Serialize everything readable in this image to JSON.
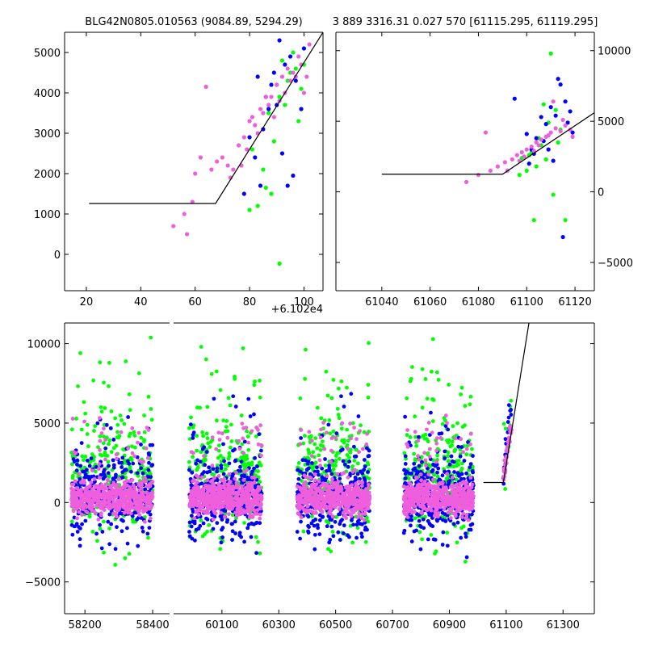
{
  "title_left": "BLG42N0805.010563 (9084.89, 5294.29)",
  "title_right": "3 889 3316.31 0.027 570 [61115.295, 61119.295]",
  "x_offset_label": "+6.102e4",
  "colors": {
    "green": "#00ff00",
    "blue": "#0000ff",
    "magenta": "#ee5edd",
    "model": "#000000"
  },
  "chart_data": [
    {
      "id": "zoom-left",
      "type": "scatter",
      "title": "BLG42N0805.010563 (9084.89, 5294.29)",
      "xlim": [
        12,
        107
      ],
      "ylim": [
        -900,
        5500
      ],
      "xticks": [
        20,
        40,
        60,
        80,
        100
      ],
      "yticks": [
        0,
        1000,
        2000,
        3000,
        4000,
        5000
      ],
      "x_offset": "+6.102e4",
      "grid": false,
      "model_line": [
        [
          21,
          1260
        ],
        [
          67.5,
          1260
        ],
        [
          107,
          5500
        ]
      ],
      "series": [
        {
          "color": "green",
          "points": [
            [
              87,
              3500
            ],
            [
              90,
              4200
            ],
            [
              92,
              4800
            ],
            [
              95,
              4500
            ],
            [
              98,
              3300
            ],
            [
              100,
              4700
            ],
            [
              85,
              2100
            ],
            [
              88,
              1500
            ],
            [
              91,
              3900
            ],
            [
              94,
              4300
            ],
            [
              96,
              5000
            ],
            [
              83,
              1200
            ],
            [
              81,
              2600
            ],
            [
              99,
              4100
            ],
            [
              91,
              -230
            ],
            [
              86,
              1650
            ],
            [
              93,
              3700
            ],
            [
              89,
              2800
            ],
            [
              80,
              1100
            ],
            [
              97,
              4600
            ]
          ]
        },
        {
          "color": "blue",
          "points": [
            [
              82,
              2400
            ],
            [
              86,
              3900
            ],
            [
              88,
              4200
            ],
            [
              91,
              5300
            ],
            [
              93,
              4700
            ],
            [
              95,
              4900
            ],
            [
              97,
              4300
            ],
            [
              100,
              5100
            ],
            [
              84,
              1700
            ],
            [
              90,
              3700
            ],
            [
              78,
              1500
            ],
            [
              80,
              2900
            ],
            [
              96,
              1950
            ],
            [
              94,
              1700
            ],
            [
              87,
              3600
            ],
            [
              92,
              2500
            ],
            [
              89,
              4500
            ],
            [
              85,
              3100
            ],
            [
              99,
              3600
            ],
            [
              83,
              4400
            ]
          ]
        },
        {
          "color": "magenta",
          "points": [
            [
              52,
              700
            ],
            [
              56,
              1000
            ],
            [
              57,
              500
            ],
            [
              62,
              2400
            ],
            [
              64,
              4150
            ],
            [
              66,
              2100
            ],
            [
              70,
              2400
            ],
            [
              72,
              2200
            ],
            [
              74,
              2100
            ],
            [
              76,
              2700
            ],
            [
              78,
              2900
            ],
            [
              80,
              3300
            ],
            [
              82,
              3200
            ],
            [
              84,
              3600
            ],
            [
              86,
              3900
            ],
            [
              88,
              3900
            ],
            [
              90,
              4200
            ],
            [
              92,
              4400
            ],
            [
              94,
              4600
            ],
            [
              96,
              4500
            ],
            [
              98,
              4900
            ],
            [
              100,
              4000
            ],
            [
              102,
              5200
            ],
            [
              60,
              2000
            ],
            [
              59,
              1300
            ],
            [
              68,
              2300
            ],
            [
              73,
              1900
            ],
            [
              77,
              2200
            ],
            [
              81,
              3400
            ],
            [
              85,
              3500
            ],
            [
              87,
              3700
            ],
            [
              89,
              3400
            ],
            [
              91,
              3800
            ],
            [
              93,
              4000
            ],
            [
              95,
              4300
            ],
            [
              97,
              4400
            ],
            [
              99,
              4700
            ],
            [
              101,
              4400
            ],
            [
              83,
              3000
            ],
            [
              79,
              2600
            ]
          ]
        }
      ]
    },
    {
      "id": "zoom-right",
      "type": "scatter",
      "title": "3 889 3316.31 0.027 570 [61115.295, 61119.295]",
      "xlim": [
        61021,
        61128
      ],
      "ylim": [
        -7000,
        11300
      ],
      "xticks": [
        61040,
        61060,
        61080,
        61100,
        61120
      ],
      "yticks": [
        -5000,
        0,
        5000,
        10000
      ],
      "y_axis_side": "right",
      "grid": false,
      "model_line": [
        [
          61040,
          1250
        ],
        [
          61090,
          1250
        ],
        [
          61128,
          5600
        ]
      ],
      "series": [
        {
          "color": "green",
          "points": [
            [
              61098,
              2400
            ],
            [
              61100,
              1500
            ],
            [
              61102,
              2800
            ],
            [
              61104,
              1800
            ],
            [
              61106,
              3300
            ],
            [
              61108,
              2300
            ],
            [
              61110,
              9800
            ],
            [
              61112,
              5800
            ],
            [
              61114,
              4400
            ],
            [
              61116,
              -2000
            ],
            [
              61097,
              1200
            ],
            [
              61103,
              -2000
            ],
            [
              61107,
              6200
            ],
            [
              61111,
              -200
            ],
            [
              61105,
              3800
            ],
            [
              61101,
              2600
            ],
            [
              61109,
              4900
            ],
            [
              61113,
              3500
            ]
          ]
        },
        {
          "color": "blue",
          "points": [
            [
              61095,
              6600
            ],
            [
              61100,
              4100
            ],
            [
              61102,
              3000
            ],
            [
              61104,
              3800
            ],
            [
              61106,
              5300
            ],
            [
              61108,
              4800
            ],
            [
              61110,
              6000
            ],
            [
              61112,
              5400
            ],
            [
              61114,
              7600
            ],
            [
              61116,
              6400
            ],
            [
              61118,
              5700
            ],
            [
              61115,
              -3200
            ],
            [
              61113,
              8000
            ],
            [
              61117,
              4900
            ],
            [
              61111,
              2200
            ],
            [
              61109,
              3000
            ],
            [
              61119,
              4200
            ],
            [
              61107,
              3600
            ],
            [
              61103,
              2700
            ],
            [
              61101,
              2000
            ]
          ]
        },
        {
          "color": "magenta",
          "points": [
            [
              61075,
              700
            ],
            [
              61080,
              1200
            ],
            [
              61085,
              1500
            ],
            [
              61088,
              1800
            ],
            [
              61091,
              2100
            ],
            [
              61094,
              2300
            ],
            [
              61096,
              2600
            ],
            [
              61098,
              2800
            ],
            [
              61100,
              3000
            ],
            [
              61102,
              3200
            ],
            [
              61104,
              3500
            ],
            [
              61106,
              3700
            ],
            [
              61108,
              3900
            ],
            [
              61110,
              4200
            ],
            [
              61112,
              4500
            ],
            [
              61114,
              4300
            ],
            [
              61116,
              4700
            ],
            [
              61118,
              4400
            ],
            [
              61083,
              4200
            ],
            [
              61092,
              1500
            ],
            [
              61097,
              2200
            ],
            [
              61103,
              2900
            ],
            [
              61109,
              4000
            ],
            [
              61115,
              5100
            ],
            [
              61119,
              3900
            ],
            [
              61111,
              6400
            ],
            [
              61105,
              3300
            ],
            [
              61099,
              2500
            ]
          ]
        }
      ]
    },
    {
      "id": "full-lightcurve",
      "type": "scatter",
      "xlim": [
        58140,
        61410
      ],
      "ylim": [
        -7000,
        11300
      ],
      "xticks": [
        58200,
        58400,
        60100,
        60300,
        60500,
        60700,
        60900,
        61100,
        61300
      ],
      "yticks": [
        -5000,
        0,
        5000,
        10000
      ],
      "x_axis_break": {
        "left_panel_xlim": [
          58140,
          58450
        ],
        "right_panel_xlim": [
          59930,
          61410
        ]
      },
      "grid": false,
      "model_line": [
        [
          61020,
          1260
        ],
        [
          61090,
          1260
        ],
        [
          61180,
          11300
        ]
      ],
      "seasons": [
        {
          "start": 58160,
          "end": 58400
        },
        {
          "start": 59985,
          "end": 60240
        },
        {
          "start": 60365,
          "end": 60620
        },
        {
          "start": 60740,
          "end": 60985
        },
        {
          "start": 61090,
          "end": 61119
        }
      ],
      "series": [
        {
          "color": "green",
          "points": []
        },
        {
          "color": "blue",
          "points": []
        },
        {
          "color": "magenta",
          "points": []
        }
      ]
    }
  ]
}
